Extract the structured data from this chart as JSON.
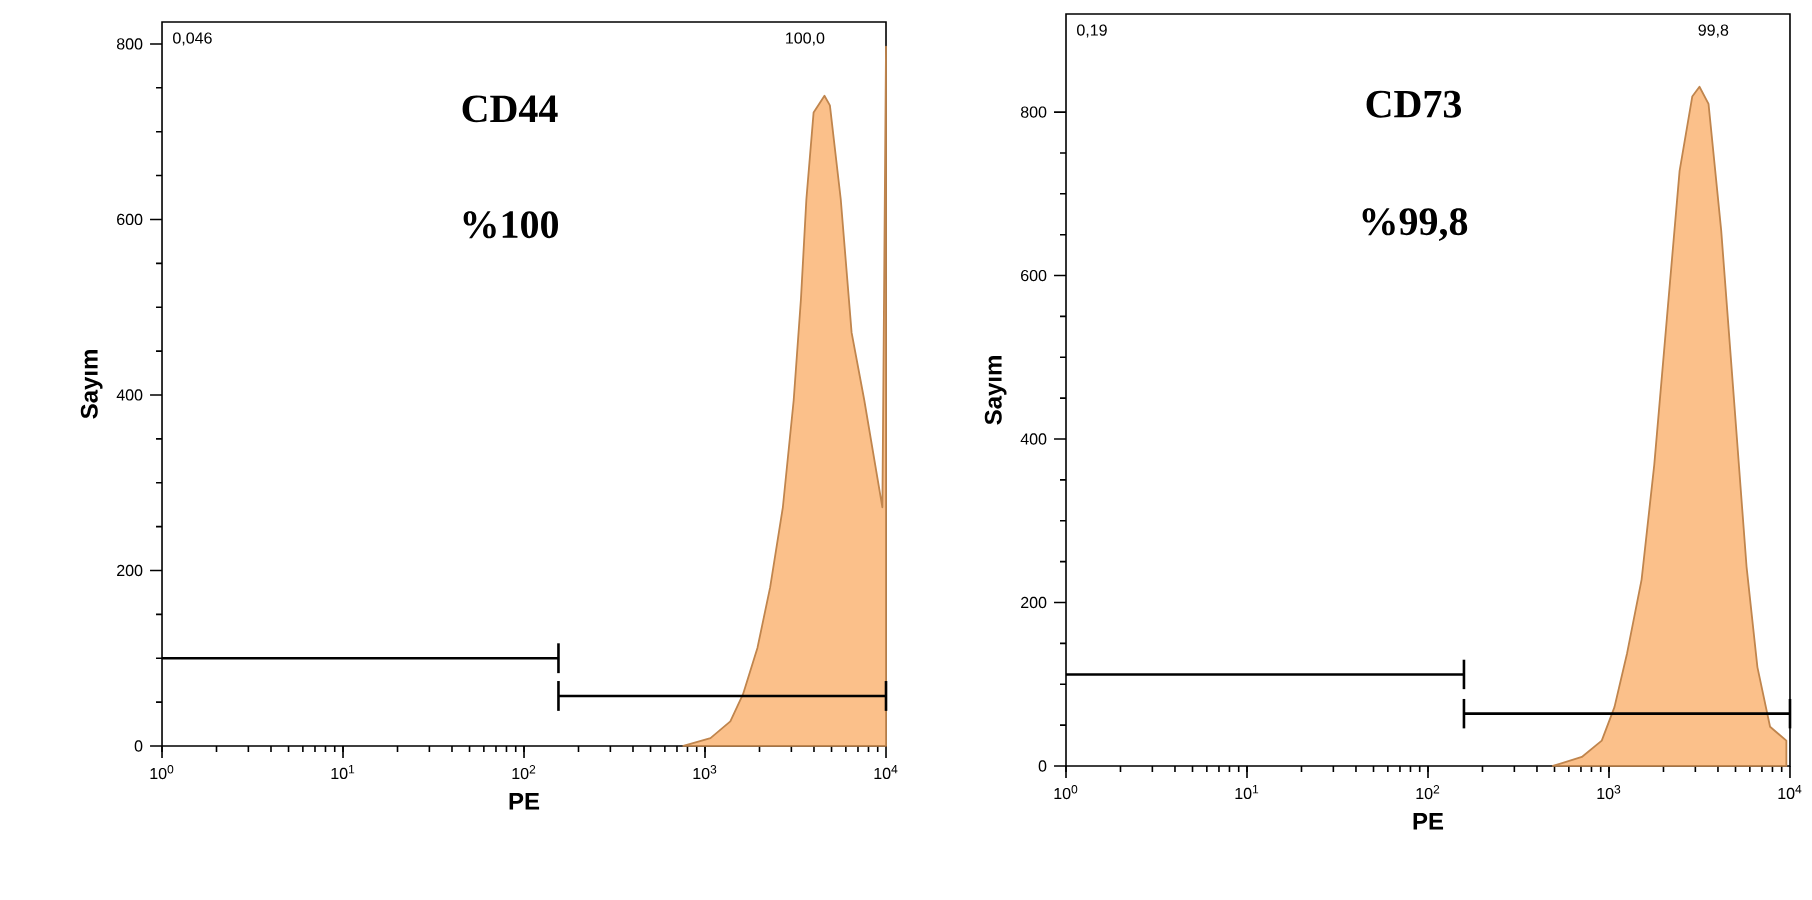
{
  "chart_data": [
    {
      "type": "area",
      "xlabel": "PE",
      "ylabel": "Sayım",
      "log": "x",
      "xlim": [
        1,
        10000
      ],
      "ylim": [
        0,
        825
      ],
      "xticks": [
        {
          "value": 1,
          "label": "10$^{0}$"
        },
        {
          "value": 10,
          "label": "10$^{1}$"
        },
        {
          "value": 100,
          "label": "10$^{2}$"
        },
        {
          "value": 1000,
          "label": "10$^{3}$"
        },
        {
          "value": 10000,
          "label": "10$^{4}$"
        }
      ],
      "yticks": [
        0,
        200,
        400,
        600,
        800
      ],
      "annotations": [
        "0,046",
        "100,0",
        "CD44",
        "%100"
      ],
      "x": [
        759,
        1072,
        1380,
        1622,
        1950,
        2291,
        2692,
        3090,
        3388,
        3631,
        3981,
        4571,
        4898,
        5623,
        6457,
        7586,
        9550,
        10000
      ],
      "series": [
        {
          "color": "#fbc08a",
          "values": [
            0,
            9,
            28,
            59,
            112,
            181,
            272,
            394,
            509,
            623,
            722,
            741,
            730,
            623,
            471,
            394,
            272,
            797
          ]
        },
        {
          "type": "line",
          "color": "#000000",
          "x": [
            1,
            155
          ],
          "values": [
            100,
            100
          ],
          "errors": [
            null,
            17
          ]
        },
        {
          "type": "line",
          "color": "#000000",
          "x": [
            155,
            10000
          ],
          "values": [
            57,
            57
          ],
          "errors": [
            17,
            17
          ]
        }
      ]
    },
    {
      "type": "area",
      "xlabel": "PE",
      "ylabel": "Sayım",
      "log": "x",
      "xlim": [
        1,
        10000
      ],
      "ylim": [
        0,
        920
      ],
      "xticks": [
        {
          "value": 1,
          "label": "10$^{0}$"
        },
        {
          "value": 10,
          "label": "10$^{1}$"
        },
        {
          "value": 100,
          "label": "10$^{2}$"
        },
        {
          "value": 1000,
          "label": "10$^{3}$"
        },
        {
          "value": 10000,
          "label": "10$^{4}$"
        }
      ],
      "yticks": [
        0,
        200,
        400,
        600,
        800
      ],
      "annotations": [
        "0,19",
        "99,8",
        "CD73",
        "%99,8"
      ],
      "x": [
        490,
        708,
        912,
        1072,
        1259,
        1514,
        1778,
        2089,
        2455,
        2884,
        3162,
        3548,
        4169,
        4898,
        5754,
        6607,
        7762,
        9550
      ],
      "series": [
        {
          "color": "#fbc08a",
          "values": [
            0,
            11,
            31,
            72,
            138,
            228,
            368,
            548,
            728,
            819,
            831,
            810,
            655,
            450,
            244,
            121,
            48,
            31
          ]
        },
        {
          "type": "line",
          "color": "#000000",
          "x": [
            1,
            158
          ],
          "values": [
            112,
            112
          ],
          "errors": [
            null,
            18
          ]
        },
        {
          "type": "line",
          "color": "#000000",
          "x": [
            158,
            10000
          ],
          "values": [
            64,
            64
          ],
          "errors": [
            18,
            18
          ]
        }
      ]
    }
  ]
}
